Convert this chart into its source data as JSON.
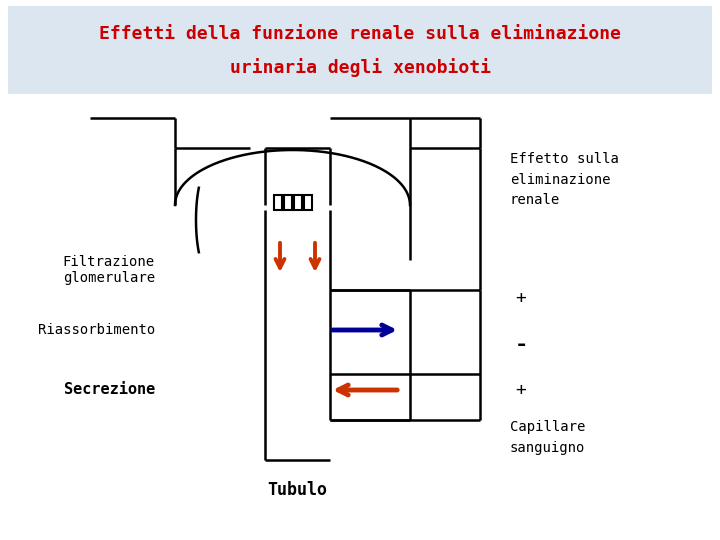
{
  "title_line1": "Effetti della funzione renale sulla eliminazione",
  "title_line2": "urinaria degli xenobioti",
  "title_color": "#cc0000",
  "title_bg_color": "#dce6f1",
  "bg_color": "#ffffff",
  "label_filtrazione": "Filtrazione\nglomerulare",
  "label_riassorbimento": "Riassorbimento",
  "label_secrezione": "Secrezione",
  "label_tubulo": "Tubulo",
  "label_effetto": "Effetto sulla\neliminazione\nrenale",
  "label_plus1": "+",
  "label_minus": "-",
  "label_plus2": "+",
  "label_capillare": "Capillare\nsanguigno",
  "arrow_down_color": "#cc3300",
  "arrow_blue_color": "#000099",
  "arrow_red_color": "#cc3300",
  "line_color": "#000000",
  "font_family": "monospace"
}
